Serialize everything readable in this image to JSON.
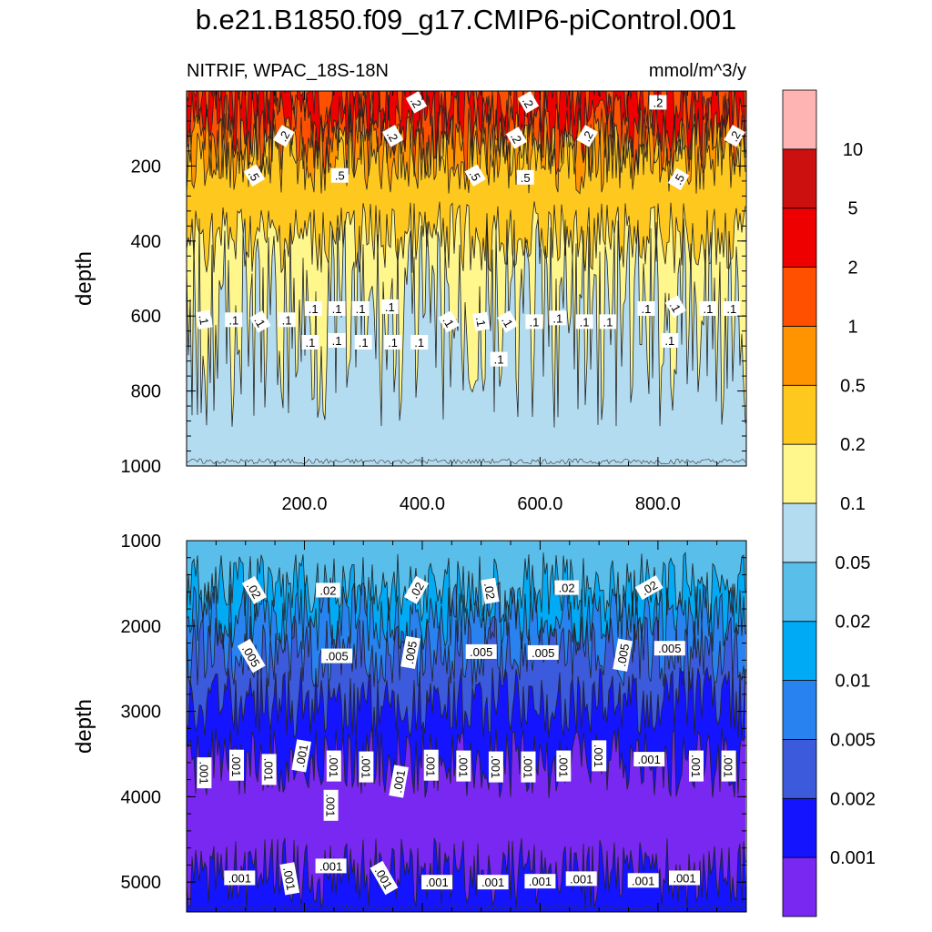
{
  "title": "b.e21.B1850.f09_g17.CMIP6-piControl.001",
  "chart_data": [
    {
      "type": "contour",
      "variable": "NITRIF, WPAC_18S-18N",
      "units": "mmol/m^3/y",
      "ylabel": "depth",
      "xlabel": "",
      "xlim": [
        0,
        950
      ],
      "ylim": [
        1000,
        0
      ],
      "xticks": [
        "200.0",
        "400.0",
        "600.0",
        "800.0"
      ],
      "yticks": [
        "200",
        "400",
        "600",
        "800",
        "1000"
      ],
      "bands": [
        {
          "from": 0,
          "to": 15,
          "level": "1-2",
          "color": "#ff5000"
        },
        {
          "from": 15,
          "to": 90,
          "level": "2-5",
          "color": "#ee0000"
        },
        {
          "from": 90,
          "to": 140,
          "level": "1-2",
          "color": "#ff5000"
        },
        {
          "from": 140,
          "to": 180,
          "level": "0.5-1",
          "color": "#ff9400"
        },
        {
          "from": 180,
          "to": 390,
          "level": "0.2-0.5",
          "color": "#ffc81e"
        },
        {
          "from": 390,
          "to": 620,
          "level": "0.1-0.2",
          "color": "#fff68c"
        },
        {
          "from": 620,
          "to": 1000,
          "level": "0.05-0.1",
          "color": "#b4dcf0"
        }
      ],
      "contour_labels": [
        {
          "text": ".2",
          "x": 390,
          "y": 30,
          "rot": 60
        },
        {
          "text": ".2",
          "x": 580,
          "y": 30,
          "rot": 60
        },
        {
          "text": ".2",
          "x": 800,
          "y": 30,
          "rot": 0
        },
        {
          "text": ".2",
          "x": 165,
          "y": 120,
          "rot": -60
        },
        {
          "text": ".2",
          "x": 350,
          "y": 120,
          "rot": 60
        },
        {
          "text": ".2",
          "x": 560,
          "y": 125,
          "rot": 60
        },
        {
          "text": ".2",
          "x": 680,
          "y": 120,
          "rot": -60
        },
        {
          "text": ".2",
          "x": 930,
          "y": 120,
          "rot": -60
        },
        {
          "text": ".5",
          "x": 115,
          "y": 225,
          "rot": 60
        },
        {
          "text": ".5",
          "x": 260,
          "y": 225,
          "rot": 0
        },
        {
          "text": ".5",
          "x": 490,
          "y": 225,
          "rot": 60
        },
        {
          "text": ".5",
          "x": 575,
          "y": 230,
          "rot": 0
        },
        {
          "text": ".5",
          "x": 835,
          "y": 235,
          "rot": -60
        },
        {
          "text": ".1",
          "x": 30,
          "y": 610,
          "rot": 80
        },
        {
          "text": ".1",
          "x": 80,
          "y": 610,
          "rot": 0
        },
        {
          "text": ".1",
          "x": 125,
          "y": 615,
          "rot": 60
        },
        {
          "text": ".1",
          "x": 170,
          "y": 610,
          "rot": 0
        },
        {
          "text": ".1",
          "x": 215,
          "y": 580,
          "rot": 0
        },
        {
          "text": ".1",
          "x": 255,
          "y": 580,
          "rot": 0
        },
        {
          "text": ".1",
          "x": 295,
          "y": 580,
          "rot": 0
        },
        {
          "text": ".1",
          "x": 345,
          "y": 575,
          "rot": 0
        },
        {
          "text": ".1",
          "x": 445,
          "y": 615,
          "rot": 60
        },
        {
          "text": ".1",
          "x": 500,
          "y": 615,
          "rot": 80
        },
        {
          "text": ".1",
          "x": 545,
          "y": 615,
          "rot": 60
        },
        {
          "text": ".1",
          "x": 590,
          "y": 615,
          "rot": 0
        },
        {
          "text": ".1",
          "x": 630,
          "y": 605,
          "rot": 0
        },
        {
          "text": ".1",
          "x": 675,
          "y": 615,
          "rot": 0
        },
        {
          "text": ".1",
          "x": 715,
          "y": 615,
          "rot": 0
        },
        {
          "text": ".1",
          "x": 780,
          "y": 580,
          "rot": 0
        },
        {
          "text": ".1",
          "x": 830,
          "y": 575,
          "rot": 60
        },
        {
          "text": ".1",
          "x": 885,
          "y": 580,
          "rot": 0
        },
        {
          "text": ".1",
          "x": 925,
          "y": 580,
          "rot": 0
        },
        {
          "text": ".1",
          "x": 210,
          "y": 670,
          "rot": 0
        },
        {
          "text": ".1",
          "x": 255,
          "y": 665,
          "rot": 0
        },
        {
          "text": ".1",
          "x": 300,
          "y": 670,
          "rot": 0
        },
        {
          "text": ".1",
          "x": 350,
          "y": 670,
          "rot": 0
        },
        {
          "text": ".1",
          "x": 395,
          "y": 670,
          "rot": 0
        },
        {
          "text": ".1",
          "x": 530,
          "y": 715,
          "rot": 0
        },
        {
          "text": ".1",
          "x": 820,
          "y": 665,
          "rot": 0
        }
      ]
    },
    {
      "type": "contour",
      "variable": "",
      "units": "",
      "ylabel": "depth",
      "xlabel": "",
      "xlim": [
        0,
        950
      ],
      "ylim": [
        5350,
        1000
      ],
      "xticks": [],
      "yticks": [
        "1000",
        "2000",
        "3000",
        "4000",
        "5000"
      ],
      "bands": [
        {
          "from": 1000,
          "to": 1550,
          "level": "0.02-0.05",
          "color": "#5abeeb"
        },
        {
          "from": 1550,
          "to": 1900,
          "level": "0.01-0.02",
          "color": "#00aaf5"
        },
        {
          "from": 1900,
          "to": 2300,
          "level": "0.005-0.01",
          "color": "#2882f0"
        },
        {
          "from": 2300,
          "to": 2900,
          "level": "0.002-0.005",
          "color": "#3c5adc"
        },
        {
          "from": 2900,
          "to": 3600,
          "level": "0.001-0.002",
          "color": "#1414ff"
        },
        {
          "from": 3600,
          "to": 4900,
          "level": "<0.001",
          "color": "#7828f0"
        },
        {
          "from": 4900,
          "to": 5350,
          "level": "0.001-0.002",
          "color": "#1414ff"
        }
      ],
      "contour_labels": [
        {
          "text": ".02",
          "x": 115,
          "y": 1580,
          "rot": 60
        },
        {
          "text": ".02",
          "x": 240,
          "y": 1580,
          "rot": 0
        },
        {
          "text": ".02",
          "x": 390,
          "y": 1580,
          "rot": -60
        },
        {
          "text": ".02",
          "x": 515,
          "y": 1590,
          "rot": 80
        },
        {
          "text": ".02",
          "x": 645,
          "y": 1550,
          "rot": 0
        },
        {
          "text": ".02",
          "x": 785,
          "y": 1550,
          "rot": -30
        },
        {
          "text": ".005",
          "x": 110,
          "y": 2350,
          "rot": 60
        },
        {
          "text": ".005",
          "x": 255,
          "y": 2350,
          "rot": 0
        },
        {
          "text": ".005",
          "x": 380,
          "y": 2310,
          "rot": -80
        },
        {
          "text": ".005",
          "x": 500,
          "y": 2300,
          "rot": 0
        },
        {
          "text": ".005",
          "x": 605,
          "y": 2310,
          "rot": 0
        },
        {
          "text": ".005",
          "x": 740,
          "y": 2340,
          "rot": -80
        },
        {
          "text": ".005",
          "x": 820,
          "y": 2260,
          "rot": 0
        },
        {
          "text": ".001",
          "x": 30,
          "y": 3720,
          "rot": 90
        },
        {
          "text": ".001",
          "x": 85,
          "y": 3630,
          "rot": 90
        },
        {
          "text": ".001",
          "x": 140,
          "y": 3680,
          "rot": 90
        },
        {
          "text": ".001",
          "x": 195,
          "y": 3520,
          "rot": -80
        },
        {
          "text": ".001",
          "x": 250,
          "y": 3640,
          "rot": 90
        },
        {
          "text": ".001",
          "x": 305,
          "y": 3650,
          "rot": 90
        },
        {
          "text": ".001",
          "x": 360,
          "y": 3820,
          "rot": -80
        },
        {
          "text": ".001",
          "x": 415,
          "y": 3630,
          "rot": 90
        },
        {
          "text": ".001",
          "x": 470,
          "y": 3640,
          "rot": 90
        },
        {
          "text": ".001",
          "x": 525,
          "y": 3650,
          "rot": 90
        },
        {
          "text": ".001",
          "x": 580,
          "y": 3650,
          "rot": 90
        },
        {
          "text": ".001",
          "x": 640,
          "y": 3640,
          "rot": 90
        },
        {
          "text": ".001",
          "x": 700,
          "y": 3520,
          "rot": 90
        },
        {
          "text": ".001",
          "x": 785,
          "y": 3560,
          "rot": 0
        },
        {
          "text": ".001",
          "x": 865,
          "y": 3640,
          "rot": 90
        },
        {
          "text": ".001",
          "x": 920,
          "y": 3640,
          "rot": 90
        },
        {
          "text": ".001",
          "x": 245,
          "y": 4100,
          "rot": 90
        },
        {
          "text": ".001",
          "x": 90,
          "y": 4950,
          "rot": 0
        },
        {
          "text": ".001",
          "x": 175,
          "y": 4960,
          "rot": 80
        },
        {
          "text": ".001",
          "x": 245,
          "y": 4810,
          "rot": 0
        },
        {
          "text": ".001",
          "x": 335,
          "y": 4950,
          "rot": 60
        },
        {
          "text": ".001",
          "x": 425,
          "y": 5000,
          "rot": 0
        },
        {
          "text": ".001",
          "x": 520,
          "y": 5000,
          "rot": 0
        },
        {
          "text": ".001",
          "x": 600,
          "y": 4990,
          "rot": 0
        },
        {
          "text": ".001",
          "x": 670,
          "y": 4960,
          "rot": 0
        },
        {
          "text": ".001",
          "x": 775,
          "y": 4980,
          "rot": 0
        },
        {
          "text": ".001",
          "x": 845,
          "y": 4950,
          "rot": 0
        }
      ]
    }
  ],
  "colorbar": {
    "colors": [
      "#7828f0",
      "#1414ff",
      "#3c5adc",
      "#2882f0",
      "#00aaf5",
      "#5abeeb",
      "#b4dcf0",
      "#fff68c",
      "#ffc81e",
      "#ff9400",
      "#ff5000",
      "#ee0000",
      "#cc0f0f",
      "#ffb4b4"
    ],
    "labels": [
      "0.001",
      "0.002",
      "0.005",
      "0.01",
      "0.02",
      "0.05",
      "0.1",
      "0.2",
      "0.5",
      "1",
      "2",
      "5",
      "10"
    ]
  }
}
